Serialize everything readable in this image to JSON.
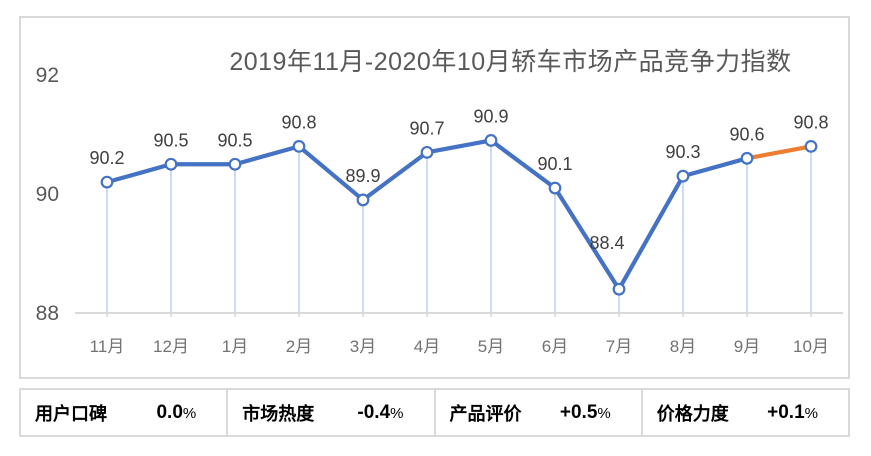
{
  "chart_data": {
    "type": "line",
    "title": "2019年11月-2020年10月轿车市场产品竞争力指数",
    "categories": [
      "11月",
      "12月",
      "1月",
      "2月",
      "3月",
      "4月",
      "5月",
      "6月",
      "7月",
      "8月",
      "9月",
      "10月"
    ],
    "values": [
      90.2,
      90.5,
      90.5,
      90.8,
      89.9,
      90.7,
      90.9,
      90.1,
      88.4,
      90.3,
      90.6,
      90.8
    ],
    "y_ticks": [
      92,
      90,
      88
    ],
    "ylim": [
      88,
      93
    ],
    "grid": "off",
    "legend": "none",
    "marker": "circle-open",
    "highlight": {
      "segment_from": "9月",
      "segment_to": "10月",
      "color": "#ED7D31"
    },
    "colors": {
      "line": "#4472C4",
      "last_segment": "#ED7D31",
      "marker_fill": "#FFFFFF",
      "marker_stroke": "#4472C4",
      "drop_line": "#C9D6ED",
      "axis_line": "#D9D9D9",
      "title_text": "#595959",
      "y_tick_text": "#595959",
      "x_tick_text": "#737373",
      "data_label_text": "#3F3F3F"
    },
    "label_offsets": {
      "default": [
        0,
        -24
      ],
      "overrides": {
        "8": [
          -12,
          -46
        ]
      }
    }
  },
  "summary_bar": {
    "items": [
      {
        "label": "用户口碑",
        "value": "0.0",
        "unit": "%"
      },
      {
        "label": "市场热度",
        "value": "-0.4",
        "unit": "%"
      },
      {
        "label": "产品评价",
        "value": "+0.5",
        "unit": "%"
      },
      {
        "label": "价格力度",
        "value": "+0.1",
        "unit": "%"
      }
    ]
  }
}
